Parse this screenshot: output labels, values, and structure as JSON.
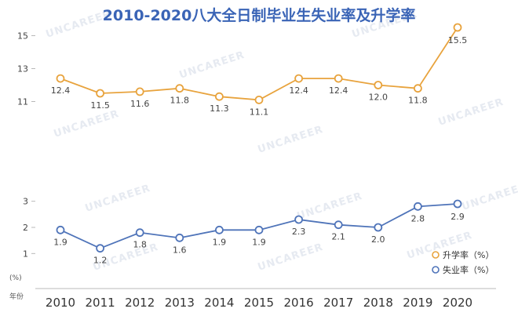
{
  "colors": {
    "title": "#3a64b6",
    "enroll": "#e8a33d",
    "unemploy": "#4f74b9",
    "axis": "#b8b8b8",
    "watermark": "#e6eaf1"
  },
  "watermark_text": "UNCAREER",
  "chart_data": {
    "type": "line",
    "title": "2010-2020八大全日制毕业生失业率及升学率",
    "x": [
      "2010",
      "2011",
      "2012",
      "2013",
      "2014",
      "2015",
      "2016",
      "2017",
      "2018",
      "2019",
      "2020"
    ],
    "xlabel": "年份",
    "ylabel": "(%)",
    "panels": {
      "upper": {
        "ylim": [
          10.5,
          15.5
        ],
        "ticks": [
          11,
          13,
          15
        ]
      },
      "lower": {
        "ylim": [
          0.5,
          3.5
        ],
        "ticks": [
          1,
          2,
          3
        ]
      }
    },
    "series": [
      {
        "name": "升学率（%）",
        "panel": "upper",
        "values": [
          12.4,
          11.5,
          11.6,
          11.8,
          11.3,
          11.1,
          12.4,
          12.4,
          12.0,
          11.8,
          15.5
        ],
        "labels": [
          "12.4",
          "11.5",
          "11.6",
          "11.8",
          "11.3",
          "11.1",
          "12.4",
          "12.4",
          "12.0",
          "11.8",
          "15.5"
        ]
      },
      {
        "name": "失业率（%）",
        "panel": "lower",
        "values": [
          1.9,
          1.2,
          1.8,
          1.6,
          1.9,
          1.9,
          2.3,
          2.1,
          2.0,
          2.8,
          2.9
        ],
        "labels": [
          "1.9",
          "1.2",
          "1.8",
          "1.6",
          "1.9",
          "1.9",
          "2.3",
          "2.1",
          "2.0",
          "2.8",
          "2.9"
        ]
      }
    ],
    "legend": "bottom-right",
    "grid": false
  }
}
